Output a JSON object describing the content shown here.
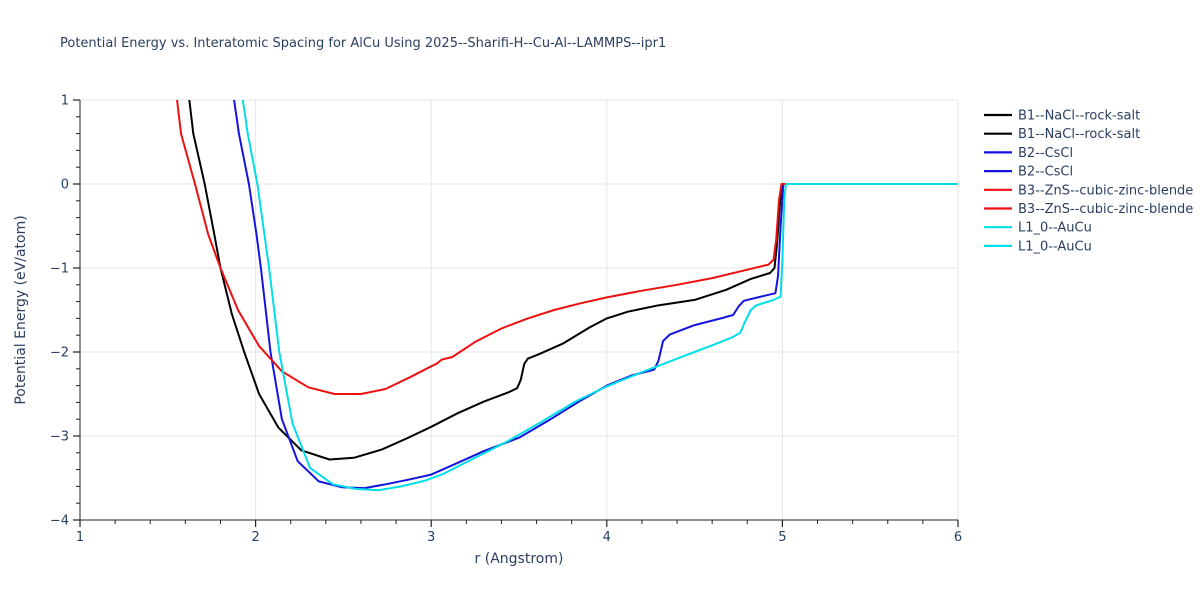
{
  "page": {
    "background": "#ffffff"
  },
  "chart_data": {
    "type": "line",
    "title": "Potential Energy vs. Interatomic Spacing for AlCu Using 2025--Sharifi-H--Cu-Al--LAMMPS--ipr1",
    "xlabel": "r (Angstrom)",
    "ylabel": "Potential Energy (eV/atom)",
    "xlim": [
      1,
      6
    ],
    "ylim": [
      -4,
      1
    ],
    "x_major_ticks": [
      1,
      2,
      3,
      4,
      5,
      6
    ],
    "y_major_ticks": [
      1,
      0,
      -1,
      -2,
      -3,
      -4
    ],
    "x_minor_step": 0.2,
    "y_minor_step": 0.2,
    "grid": true,
    "legend_position": "right",
    "colors": {
      "text": "#2a3f5f",
      "grid": "#e5e5e5",
      "axis": "#222222",
      "black_series": "#000000",
      "blue_series": "#1414dd",
      "red_series": "#ee1010",
      "cyan_series": "#00dfe8"
    },
    "legend_entries": [
      {
        "label": "B1--NaCl--rock-salt",
        "color": "#000000"
      },
      {
        "label": "B1--NaCl--rock-salt",
        "color": "#000000"
      },
      {
        "label": "B2--CsCl",
        "color": "#1414dd"
      },
      {
        "label": "B2--CsCl",
        "color": "#1414dd"
      },
      {
        "label": "B3--ZnS--cubic-zinc-blende",
        "color": "#ee1010"
      },
      {
        "label": "B3--ZnS--cubic-zinc-blende",
        "color": "#ee1010"
      },
      {
        "label": "L1_0--AuCu",
        "color": "#00dfe8"
      },
      {
        "label": "L1_0--AuCu",
        "color": "#00dfe8"
      }
    ],
    "series": [
      {
        "name": "B1--NaCl--rock-salt",
        "color": "#000000",
        "points": [
          [
            1.6,
            1.4
          ],
          [
            1.645,
            0.6
          ],
          [
            1.71,
            0.0
          ],
          [
            1.76,
            -0.55
          ],
          [
            1.8,
            -1.0
          ],
          [
            1.865,
            -1.55
          ],
          [
            1.935,
            -2.0
          ],
          [
            2.02,
            -2.5
          ],
          [
            2.13,
            -2.9
          ],
          [
            2.26,
            -3.17
          ],
          [
            2.42,
            -3.28
          ],
          [
            2.56,
            -3.26
          ],
          [
            2.72,
            -3.16
          ],
          [
            2.86,
            -3.03
          ],
          [
            3.0,
            -2.89
          ],
          [
            3.15,
            -2.73
          ],
          [
            3.3,
            -2.59
          ],
          [
            3.44,
            -2.48
          ],
          [
            3.49,
            -2.43
          ],
          [
            3.51,
            -2.33
          ],
          [
            3.53,
            -2.14
          ],
          [
            3.55,
            -2.08
          ],
          [
            3.62,
            -2.02
          ],
          [
            3.75,
            -1.9
          ],
          [
            3.9,
            -1.71
          ],
          [
            4.0,
            -1.6
          ],
          [
            4.12,
            -1.52
          ],
          [
            4.28,
            -1.45
          ],
          [
            4.5,
            -1.38
          ],
          [
            4.68,
            -1.26
          ],
          [
            4.82,
            -1.13
          ],
          [
            4.93,
            -1.06
          ],
          [
            4.955,
            -1.0
          ],
          [
            4.97,
            -0.7
          ],
          [
            4.985,
            -0.25
          ],
          [
            5.0,
            0.0
          ],
          [
            6.0,
            0.0
          ]
        ]
      },
      {
        "name": "B2--CsCl",
        "color": "#1414dd",
        "points": [
          [
            1.85,
            1.4
          ],
          [
            1.905,
            0.6
          ],
          [
            1.962,
            0.0
          ],
          [
            2.005,
            -0.6
          ],
          [
            2.03,
            -1.0
          ],
          [
            2.085,
            -2.0
          ],
          [
            2.15,
            -2.8
          ],
          [
            2.24,
            -3.3
          ],
          [
            2.36,
            -3.54
          ],
          [
            2.49,
            -3.61
          ],
          [
            2.62,
            -3.62
          ],
          [
            2.74,
            -3.575
          ],
          [
            2.87,
            -3.52
          ],
          [
            3.0,
            -3.46
          ],
          [
            3.15,
            -3.32
          ],
          [
            3.3,
            -3.18
          ],
          [
            3.5,
            -3.02
          ],
          [
            3.68,
            -2.8
          ],
          [
            3.85,
            -2.58
          ],
          [
            4.0,
            -2.4
          ],
          [
            4.14,
            -2.28
          ],
          [
            4.27,
            -2.21
          ],
          [
            4.295,
            -2.1
          ],
          [
            4.32,
            -1.87
          ],
          [
            4.36,
            -1.79
          ],
          [
            4.5,
            -1.68
          ],
          [
            4.65,
            -1.6
          ],
          [
            4.72,
            -1.56
          ],
          [
            4.75,
            -1.46
          ],
          [
            4.78,
            -1.39
          ],
          [
            4.86,
            -1.35
          ],
          [
            4.96,
            -1.3
          ],
          [
            4.975,
            -1.1
          ],
          [
            4.99,
            -0.5
          ],
          [
            5.005,
            0.0
          ],
          [
            6.0,
            0.0
          ]
        ]
      },
      {
        "name": "B3--ZnS--cubic-zinc-blende",
        "color": "#ee1010",
        "points": [
          [
            1.53,
            1.4
          ],
          [
            1.575,
            0.6
          ],
          [
            1.655,
            0.0
          ],
          [
            1.73,
            -0.6
          ],
          [
            1.8,
            -1.0
          ],
          [
            1.9,
            -1.5
          ],
          [
            2.02,
            -1.93
          ],
          [
            2.15,
            -2.23
          ],
          [
            2.3,
            -2.42
          ],
          [
            2.45,
            -2.5
          ],
          [
            2.6,
            -2.5
          ],
          [
            2.74,
            -2.44
          ],
          [
            2.88,
            -2.3
          ],
          [
            3.0,
            -2.17
          ],
          [
            3.03,
            -2.14
          ],
          [
            3.06,
            -2.09
          ],
          [
            3.12,
            -2.06
          ],
          [
            3.25,
            -1.88
          ],
          [
            3.4,
            -1.72
          ],
          [
            3.55,
            -1.6
          ],
          [
            3.7,
            -1.5
          ],
          [
            3.85,
            -1.42
          ],
          [
            4.0,
            -1.35
          ],
          [
            4.2,
            -1.27
          ],
          [
            4.4,
            -1.2
          ],
          [
            4.6,
            -1.12
          ],
          [
            4.8,
            -1.02
          ],
          [
            4.92,
            -0.96
          ],
          [
            4.95,
            -0.9
          ],
          [
            4.965,
            -0.65
          ],
          [
            4.98,
            -0.2
          ],
          [
            4.995,
            0.0
          ],
          [
            6.0,
            0.0
          ]
        ]
      },
      {
        "name": "L1_0--AuCu",
        "color": "#00dfe8",
        "points": [
          [
            1.9,
            1.4
          ],
          [
            1.955,
            0.6
          ],
          [
            2.01,
            0.0
          ],
          [
            2.05,
            -0.6
          ],
          [
            2.077,
            -1.0
          ],
          [
            2.135,
            -2.0
          ],
          [
            2.21,
            -2.85
          ],
          [
            2.31,
            -3.38
          ],
          [
            2.44,
            -3.575
          ],
          [
            2.57,
            -3.63
          ],
          [
            2.7,
            -3.645
          ],
          [
            2.83,
            -3.6
          ],
          [
            2.96,
            -3.535
          ],
          [
            3.07,
            -3.45
          ],
          [
            3.22,
            -3.29
          ],
          [
            3.42,
            -3.08
          ],
          [
            3.62,
            -2.84
          ],
          [
            3.82,
            -2.59
          ],
          [
            4.0,
            -2.41
          ],
          [
            4.2,
            -2.24
          ],
          [
            4.4,
            -2.08
          ],
          [
            4.6,
            -1.92
          ],
          [
            4.72,
            -1.82
          ],
          [
            4.76,
            -1.77
          ],
          [
            4.785,
            -1.65
          ],
          [
            4.82,
            -1.5
          ],
          [
            4.85,
            -1.445
          ],
          [
            4.95,
            -1.38
          ],
          [
            4.99,
            -1.34
          ],
          [
            5.0,
            -0.9
          ],
          [
            5.01,
            -0.2
          ],
          [
            5.02,
            0.0
          ],
          [
            6.0,
            0.0
          ]
        ]
      }
    ]
  }
}
